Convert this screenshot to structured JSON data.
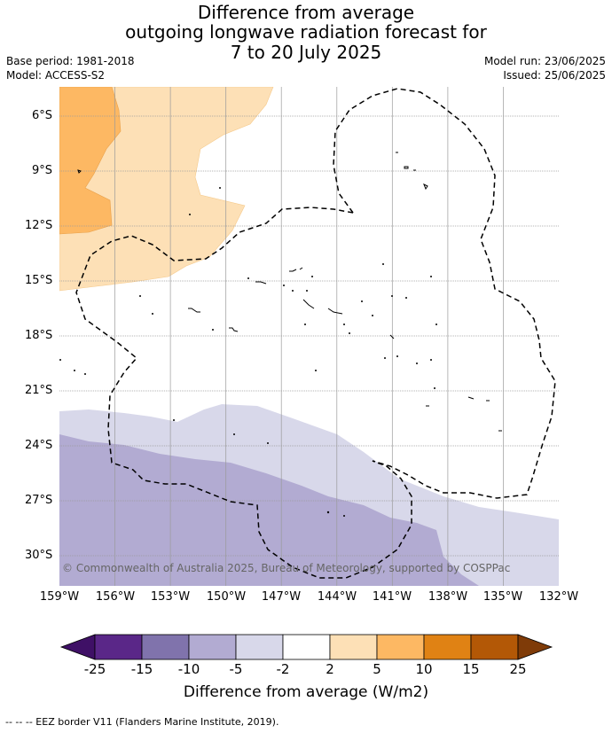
{
  "title": {
    "line1": "Difference from average",
    "line2": "outgoing longwave radiation forecast for",
    "line3": "7 to 20 July 2025"
  },
  "meta": {
    "base_period": "Base period: 1981-2018",
    "model": "Model: ACCESS-S2",
    "model_run": "Model run: 23/06/2025",
    "issued": "Issued: 25/06/2025"
  },
  "map": {
    "lat_labels": [
      "6°S",
      "9°S",
      "12°S",
      "15°S",
      "18°S",
      "21°S",
      "24°S",
      "27°S",
      "30°S"
    ],
    "lon_labels": [
      "159°W",
      "156°W",
      "153°W",
      "150°W",
      "147°W",
      "144°W",
      "141°W",
      "138°W",
      "135°W",
      "132°W"
    ],
    "copyright": "© Commonwealth of Australia 2025, Bureau of Meteorology, supported by COSPPac",
    "colors": {
      "pos2_5": "#fde0b6",
      "pos5_10": "#fdb863",
      "neg5_2": "#d8d8ea",
      "neg10_5": "#b2abd2"
    }
  },
  "colorbar": {
    "ticks": [
      "-25",
      "-15",
      "-10",
      "-5",
      "-2",
      "2",
      "5",
      "10",
      "15",
      "25"
    ],
    "colors": [
      "#3f1066",
      "#5a2788",
      "#8073ac",
      "#b2abd2",
      "#d8d8ea",
      "#ffffff",
      "#fde0b6",
      "#fdb863",
      "#e08214",
      "#b35806",
      "#7f3b08"
    ],
    "title": "Difference from average (W/m2)"
  },
  "legend": "--  --  -- EEZ border V11 (Flanders Marine Institute, 2019)."
}
